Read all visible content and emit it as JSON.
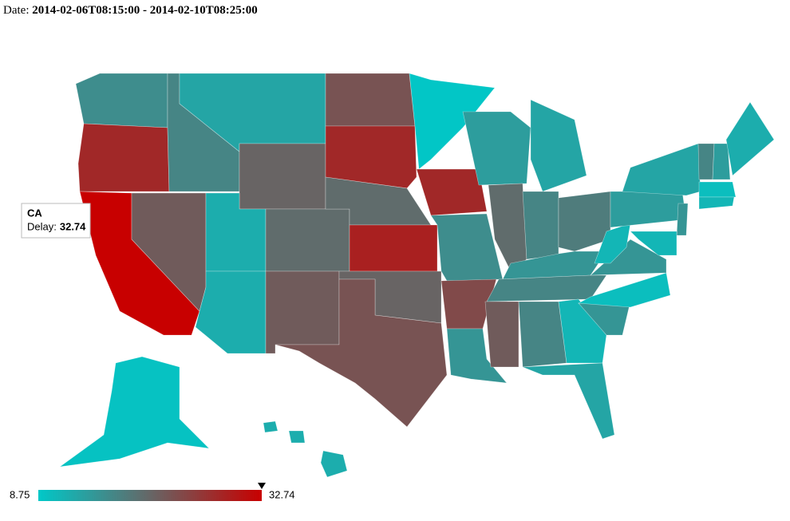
{
  "header": {
    "label": "Date:",
    "range": "2014-02-06T08:15:00 - 2014-02-10T08:25:00"
  },
  "map": {
    "values": [
      16,
      28,
      32.74,
      17,
      13,
      21,
      22,
      12,
      12,
      20,
      22,
      23,
      28,
      20,
      29,
      21,
      23,
      9,
      28,
      16,
      24,
      15,
      14,
      20,
      13,
      17,
      18,
      15,
      17,
      22,
      17,
      11,
      13,
      15,
      10,
      15,
      11,
      14,
      13,
      17,
      14,
      12,
      10,
      11,
      15,
      11,
      9.5,
      12,
      12,
      12
    ],
    "colors": [
      "#00c8c8",
      "#666666",
      "#c80000"
    ]
  },
  "legend": {
    "min": 8.75,
    "max": 32.74
  },
  "tooltip": {
    "title": "CA",
    "label": "Delay:",
    "value": 32.74
  }
}
